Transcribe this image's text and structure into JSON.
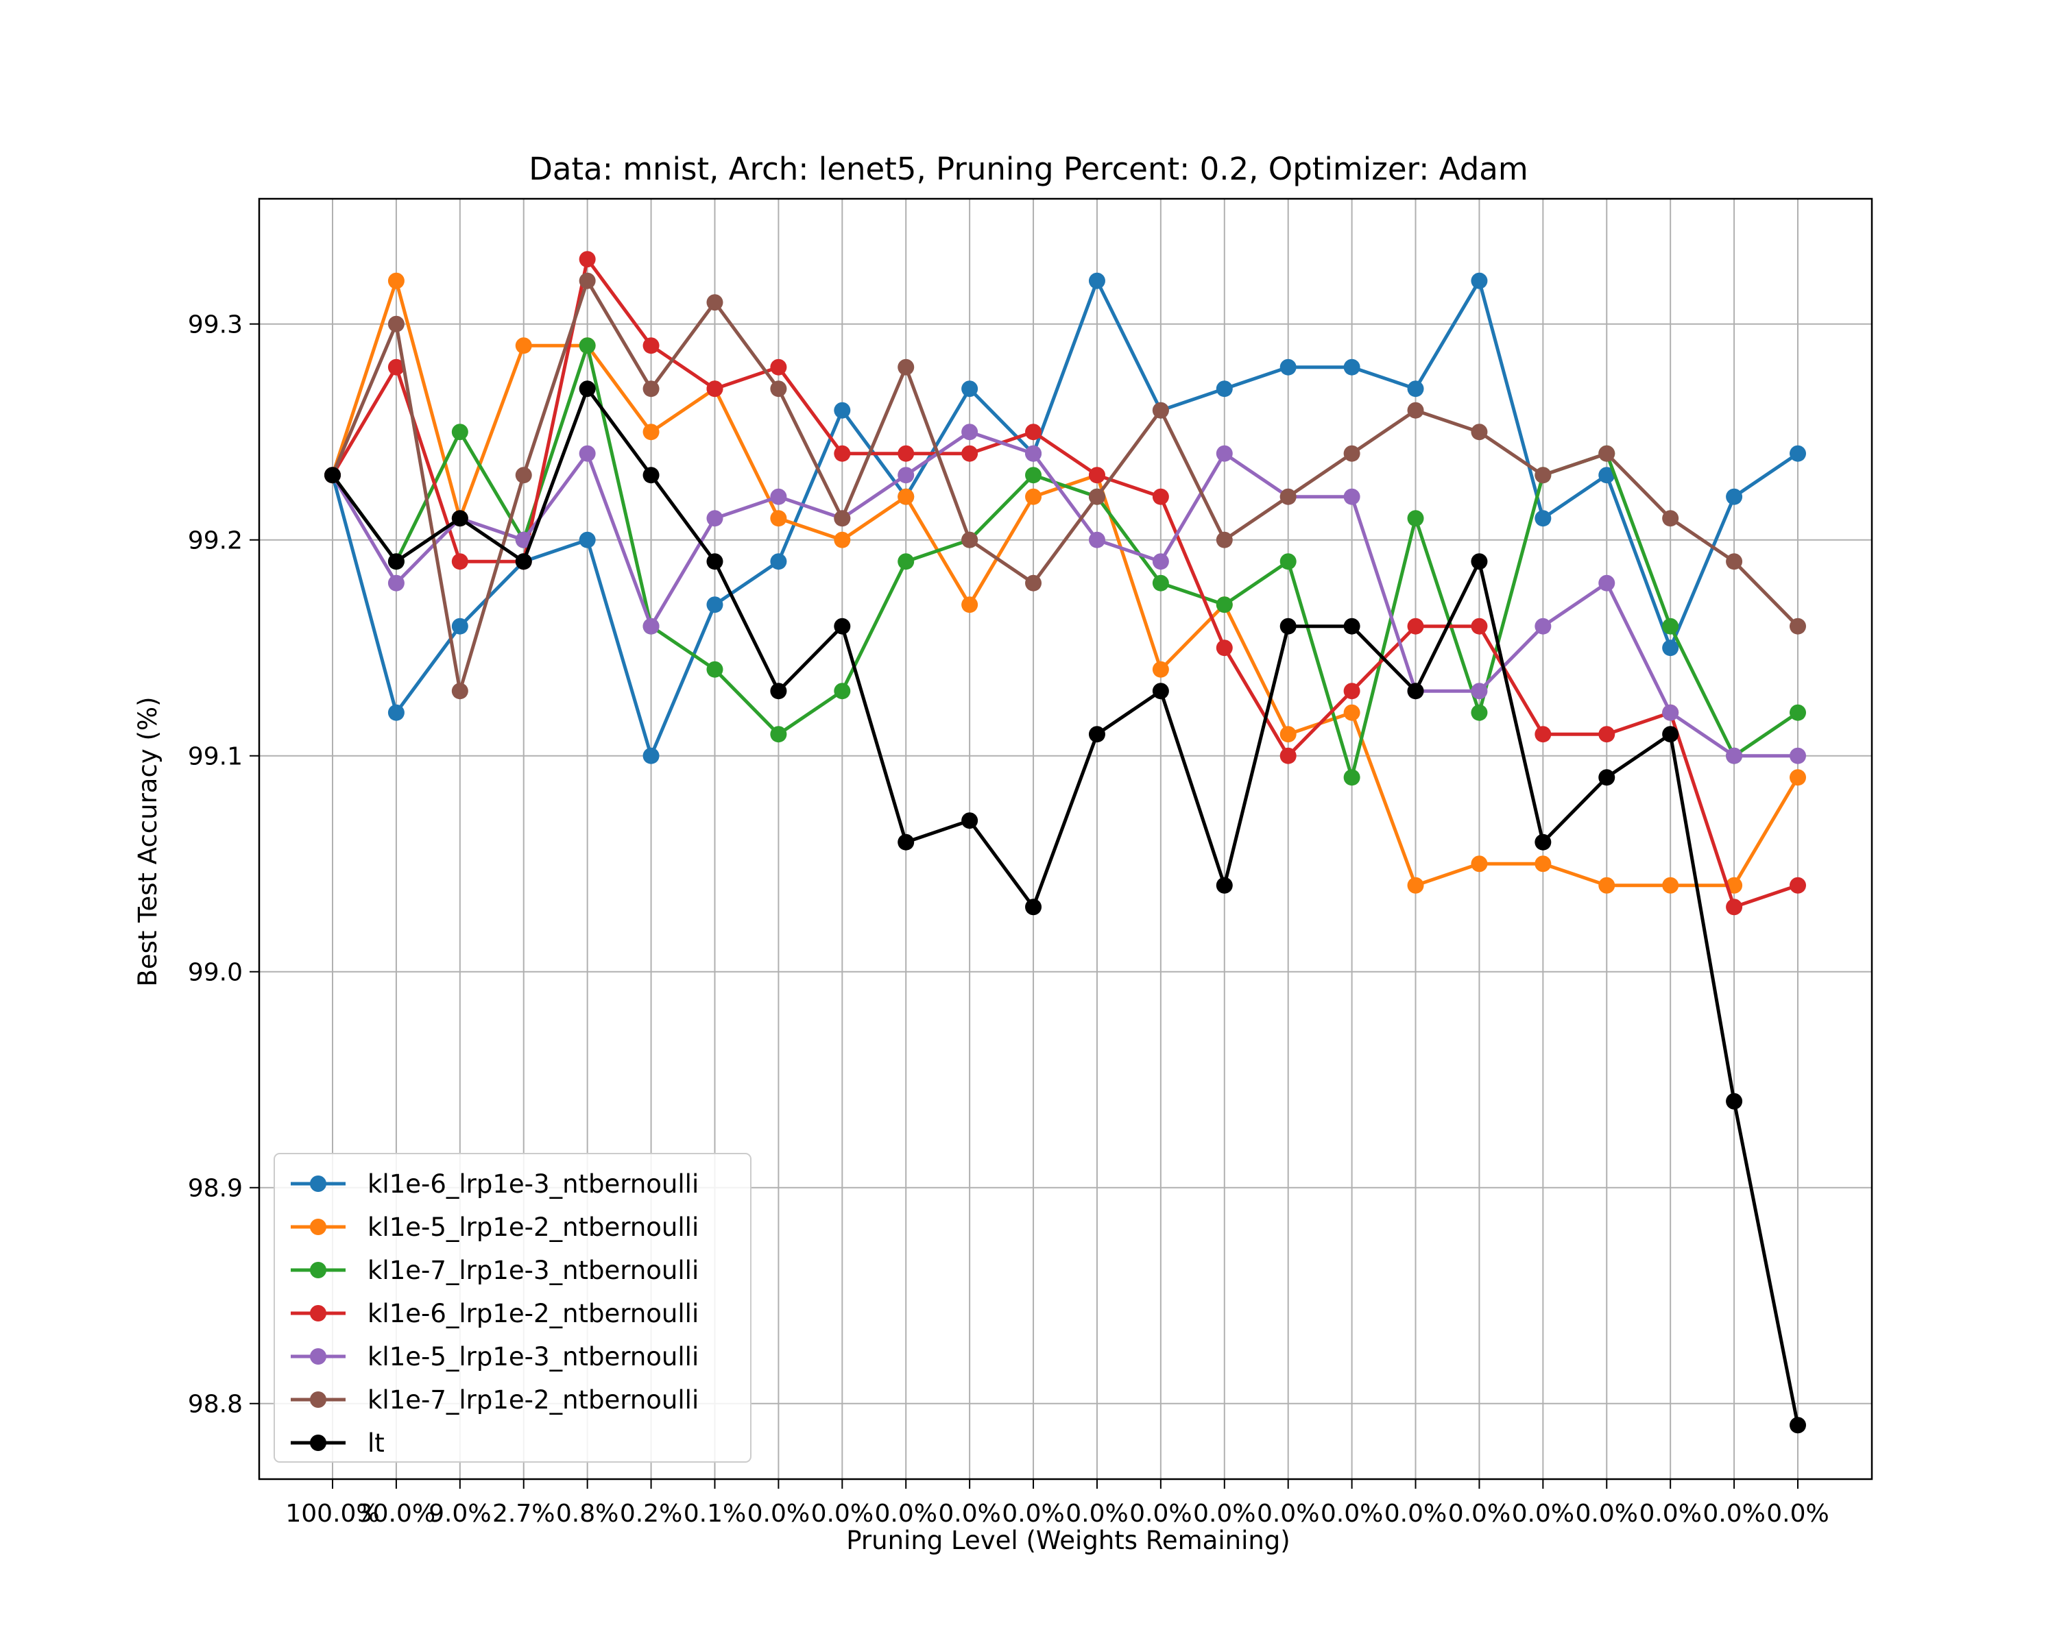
{
  "chart_data": {
    "type": "line",
    "title": "Data: mnist, Arch: lenet5, Pruning Percent: 0.2, Optimizer: Adam",
    "xlabel": "Pruning Level (Weights Remaining)",
    "ylabel": "Best Test Accuracy (%)",
    "categories": [
      "100.0%",
      "30.0%",
      "9.0%",
      "2.7%",
      "0.8%",
      "0.2%",
      "0.1%",
      "0.0%",
      "0.0%",
      "0.0%",
      "0.0%",
      "0.0%",
      "0.0%",
      "0.0%",
      "0.0%",
      "0.0%",
      "0.0%",
      "0.0%",
      "0.0%",
      "0.0%",
      "0.0%",
      "0.0%",
      "0.0%",
      "0.0%"
    ],
    "ylim": [
      98.765,
      99.358
    ],
    "yticks": [
      98.8,
      98.9,
      99.0,
      99.1,
      99.2,
      99.3
    ],
    "ytick_labels": [
      "98.8",
      "98.9",
      "99.0",
      "99.1",
      "99.2",
      "99.3"
    ],
    "grid": true,
    "legend_position": "lower-left",
    "series": [
      {
        "name": "kl1e-6_lrp1e-3_ntbernoulli",
        "color": "#1f77b4",
        "values": [
          99.23,
          99.12,
          99.16,
          99.19,
          99.2,
          99.1,
          99.17,
          99.19,
          99.26,
          99.22,
          99.27,
          99.24,
          99.32,
          99.26,
          99.27,
          99.28,
          99.28,
          99.27,
          99.32,
          99.21,
          99.23,
          99.15,
          99.22,
          99.24
        ]
      },
      {
        "name": "kl1e-5_lrp1e-2_ntbernoulli",
        "color": "#ff7f0e",
        "values": [
          99.23,
          99.32,
          99.21,
          99.29,
          99.29,
          99.25,
          99.27,
          99.21,
          99.2,
          99.22,
          99.17,
          99.22,
          99.23,
          99.14,
          99.17,
          99.11,
          99.12,
          99.04,
          99.05,
          99.05,
          99.04,
          99.04,
          99.04,
          99.09
        ]
      },
      {
        "name": "kl1e-7_lrp1e-3_ntbernoulli",
        "color": "#2ca02c",
        "values": [
          99.23,
          99.19,
          99.25,
          99.2,
          99.29,
          99.16,
          99.14,
          99.11,
          99.13,
          99.19,
          99.2,
          99.23,
          99.22,
          99.18,
          99.17,
          99.19,
          99.09,
          99.21,
          99.12,
          99.23,
          99.24,
          99.16,
          99.1,
          99.12
        ]
      },
      {
        "name": "kl1e-6_lrp1e-2_ntbernoulli",
        "color": "#d62728",
        "values": [
          99.23,
          99.28,
          99.19,
          99.19,
          99.33,
          99.29,
          99.27,
          99.28,
          99.24,
          99.24,
          99.24,
          99.25,
          99.23,
          99.22,
          99.15,
          99.1,
          99.13,
          99.16,
          99.16,
          99.11,
          99.11,
          99.12,
          99.03,
          99.04
        ]
      },
      {
        "name": "kl1e-5_lrp1e-3_ntbernoulli",
        "color": "#9467bd",
        "values": [
          99.23,
          99.18,
          99.21,
          99.2,
          99.24,
          99.16,
          99.21,
          99.22,
          99.21,
          99.23,
          99.25,
          99.24,
          99.2,
          99.19,
          99.24,
          99.22,
          99.22,
          99.13,
          99.13,
          99.16,
          99.18,
          99.12,
          99.1,
          99.1
        ]
      },
      {
        "name": "kl1e-7_lrp1e-2_ntbernoulli",
        "color": "#8c564b",
        "values": [
          99.23,
          99.3,
          99.13,
          99.23,
          99.32,
          99.27,
          99.31,
          99.27,
          99.21,
          99.28,
          99.2,
          99.18,
          99.22,
          99.26,
          99.2,
          99.22,
          99.24,
          99.26,
          99.25,
          99.23,
          99.24,
          99.21,
          99.19,
          99.16
        ]
      },
      {
        "name": "lt",
        "color": "#000000",
        "values": [
          99.23,
          99.19,
          99.21,
          99.19,
          99.27,
          99.23,
          99.19,
          99.13,
          99.16,
          99.06,
          99.07,
          99.03,
          99.11,
          99.13,
          99.04,
          99.16,
          99.16,
          99.13,
          99.19,
          99.06,
          99.09,
          99.11,
          98.94,
          98.79
        ]
      }
    ]
  }
}
